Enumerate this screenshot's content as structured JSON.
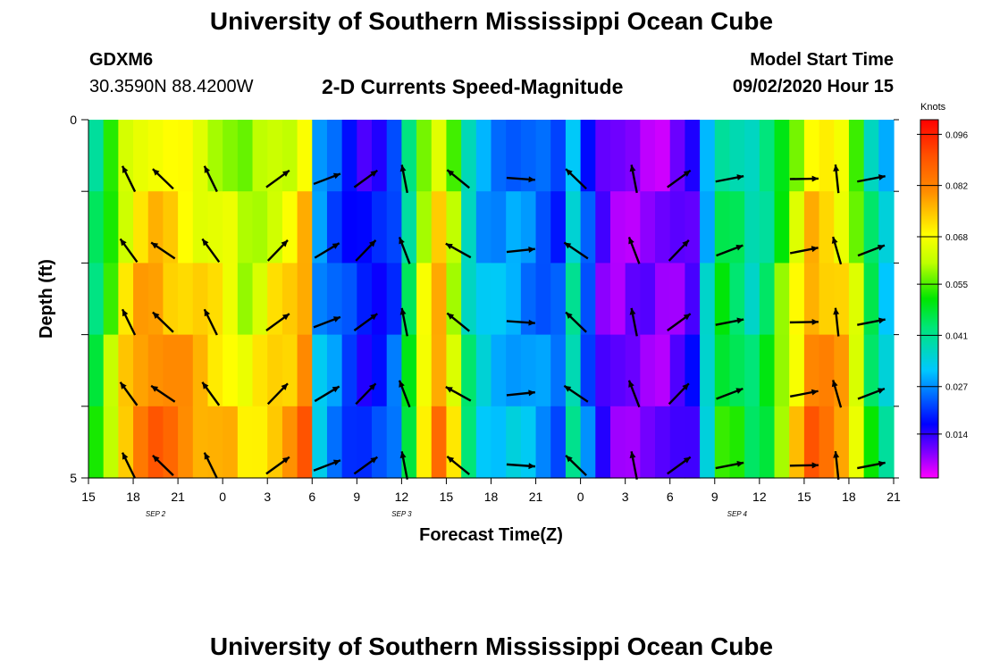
{
  "header": {
    "title": "University of Southern Mississippi Ocean Cube",
    "station_id": "GDXM6",
    "coords": "30.3590N 88.4200W",
    "subtitle": "2-D Currents Speed-Magnitude",
    "model_start_label": "Model Start Time",
    "model_start_value": "09/02/2020 Hour 15"
  },
  "footer": {
    "title": "University of Southern Mississippi Ocean Cube"
  },
  "chart_data": {
    "type": "heatmap",
    "title": "2-D Currents Speed-Magnitude",
    "xlabel": "Forecast Time(Z)",
    "ylabel": "Depth (ft)",
    "x_tick_labels": [
      "15",
      "18",
      "21",
      "0",
      "3",
      "6",
      "9",
      "12",
      "15",
      "18",
      "21",
      "0",
      "3",
      "6",
      "9",
      "12",
      "15",
      "18",
      "21"
    ],
    "x_range_hours": [
      0,
      54
    ],
    "date_labels": [
      {
        "text": "SEP 2",
        "hour": 4.5
      },
      {
        "text": "SEP 3",
        "hour": 21
      },
      {
        "text": "SEP 4",
        "hour": 43.5
      }
    ],
    "y_tick_labels": [
      "0",
      "5"
    ],
    "y_range": [
      0,
      5
    ],
    "colorbar": {
      "unit": "Knots",
      "min": 0.002,
      "max": 0.1,
      "ticks": [
        "0.096",
        "0.082",
        "0.068",
        "0.055",
        "0.041",
        "0.027",
        "0.014"
      ]
    },
    "column_hours": [
      0,
      1,
      2,
      3,
      4,
      5,
      6,
      7,
      8,
      9,
      10,
      11,
      12,
      13,
      14,
      15,
      16,
      17,
      18,
      19,
      20,
      21,
      22,
      23,
      24,
      25,
      26,
      27,
      28,
      29,
      30,
      31,
      32,
      33,
      34,
      35,
      36,
      37,
      38,
      39,
      40,
      41,
      42,
      43,
      44,
      45,
      46,
      47,
      48,
      49,
      50,
      51,
      52,
      53
    ],
    "speed_profile": [
      0.04,
      0.05,
      0.062,
      0.068,
      0.07,
      0.068,
      0.066,
      0.064,
      0.062,
      0.06,
      0.055,
      0.058,
      0.062,
      0.064,
      0.07,
      0.026,
      0.022,
      0.018,
      0.015,
      0.016,
      0.02,
      0.04,
      0.058,
      0.068,
      0.055,
      0.035,
      0.028,
      0.026,
      0.026,
      0.024,
      0.022,
      0.02,
      0.034,
      0.02,
      0.01,
      0.007,
      0.008,
      0.008,
      0.007,
      0.009,
      0.012,
      0.03,
      0.043,
      0.04,
      0.035,
      0.04,
      0.05,
      0.06,
      0.07,
      0.068,
      0.065,
      0.055,
      0.04,
      0.03
    ],
    "arrow_columns": [
      2.7,
      5.0,
      8.2,
      12.7,
      16.0,
      18.6,
      21.2,
      24.8,
      29.0,
      32.7,
      36.6,
      39.6,
      43.0,
      48.0,
      50.2,
      52.5
    ],
    "arrow_rows": [
      1,
      2,
      3,
      4,
      5
    ],
    "arrow_angles_deg": [
      120,
      140,
      120,
      40,
      25,
      40,
      105,
      145,
      0,
      140,
      105,
      40,
      15,
      5,
      100,
      15
    ]
  }
}
